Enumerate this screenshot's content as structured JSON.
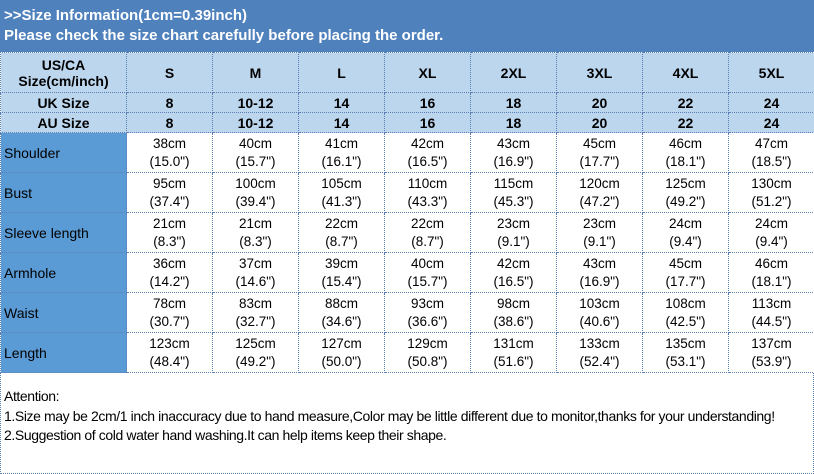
{
  "title": {
    "line1": ">>Size Information(1cm=0.39inch)",
    "line2": "Please check the size chart carefully before placing the order."
  },
  "header": {
    "label": "US/CA Size(cm/inch)",
    "sizes": [
      "S",
      "M",
      "L",
      "XL",
      "2XL",
      "3XL",
      "4XL",
      "5XL"
    ]
  },
  "uk": {
    "label": "UK Size",
    "values": [
      "8",
      "10-12",
      "14",
      "16",
      "18",
      "20",
      "22",
      "24"
    ]
  },
  "au": {
    "label": "AU Size",
    "values": [
      "8",
      "10-12",
      "14",
      "16",
      "18",
      "20",
      "22",
      "24"
    ]
  },
  "rows": [
    {
      "label": "Shoulder",
      "cm": [
        "38cm",
        "40cm",
        "41cm",
        "42cm",
        "43cm",
        "45cm",
        "46cm",
        "47cm"
      ],
      "inch": [
        "(15.0\")",
        "(15.7\")",
        "(16.1\")",
        "(16.5\")",
        "(16.9\")",
        "(17.7\")",
        "(18.1\")",
        "(18.5\")"
      ]
    },
    {
      "label": "Bust",
      "cm": [
        "95cm",
        "100cm",
        "105cm",
        "110cm",
        "115cm",
        "120cm",
        "125cm",
        "130cm"
      ],
      "inch": [
        "(37.4\")",
        "(39.4\")",
        "(41.3\")",
        "(43.3\")",
        "(45.3\")",
        "(47.2\")",
        "(49.2\")",
        "(51.2\")"
      ]
    },
    {
      "label": "Sleeve length",
      "cm": [
        "21cm",
        "21cm",
        "22cm",
        "22cm",
        "23cm",
        "23cm",
        "24cm",
        "24cm"
      ],
      "inch": [
        "(8.3\")",
        "(8.3\")",
        "(8.7\")",
        "(8.7\")",
        "(9.1\")",
        "(9.1\")",
        "(9.4\")",
        "(9.4\")"
      ]
    },
    {
      "label": "Armhole",
      "cm": [
        "36cm",
        "37cm",
        "39cm",
        "40cm",
        "42cm",
        "43cm",
        "45cm",
        "46cm"
      ],
      "inch": [
        "(14.2\")",
        "(14.6\")",
        "(15.4\")",
        "(15.7\")",
        "(16.5\")",
        "(16.9\")",
        "(17.7\")",
        "(18.1\")"
      ]
    },
    {
      "label": "Waist",
      "cm": [
        "78cm",
        "83cm",
        "88cm",
        "93cm",
        "98cm",
        "103cm",
        "108cm",
        "113cm"
      ],
      "inch": [
        "(30.7\")",
        "(32.7\")",
        "(34.6\")",
        "(36.6\")",
        "(38.6\")",
        "(40.6\")",
        "(42.5\")",
        "(44.5\")"
      ]
    },
    {
      "label": "Length",
      "cm": [
        "123cm",
        "125cm",
        "127cm",
        "129cm",
        "131cm",
        "133cm",
        "135cm",
        "137cm"
      ],
      "inch": [
        "(48.4\")",
        "(49.2\")",
        "(50.0\")",
        "(50.8\")",
        "(51.6\")",
        "(52.4\")",
        "(53.1\")",
        "(53.9\")"
      ]
    }
  ],
  "notes": [
    "Attention:",
    "1.Size may be 2cm/1 inch inaccuracy due to hand measure,Color may be little different due to monitor,thanks for your understanding!",
    "2.Suggestion of cold water hand washing.It can help items keep their shape."
  ],
  "colors": {
    "title_bg": "#4f81bd",
    "header_bg": "#bcd6ee",
    "label_bg": "#5b9bd5"
  }
}
